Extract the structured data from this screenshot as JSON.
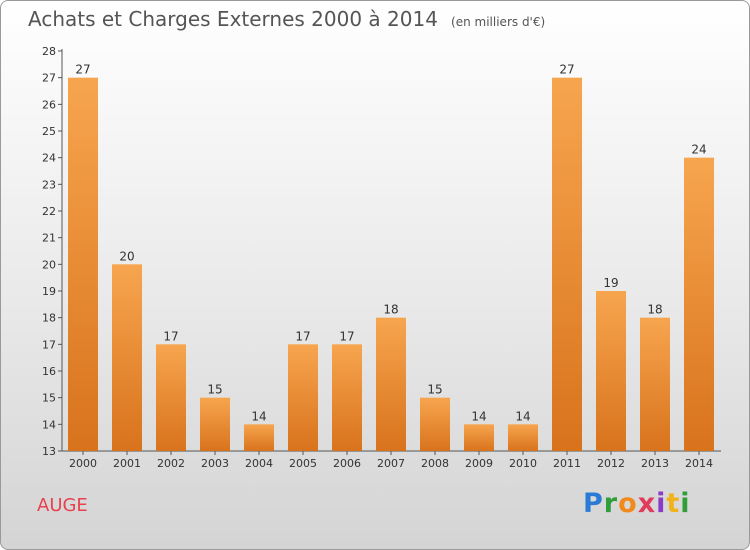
{
  "header": {
    "title": "Achats et Charges Externes 2000 à 2014",
    "unit": "(en milliers d'€)"
  },
  "footer": {
    "commune": "AUGE",
    "logo": "Proxiti"
  },
  "colors": {
    "bar_light": "#f7a54f",
    "bar_dark": "#d8731c",
    "axis": "#555555",
    "commune": "#e8414f"
  },
  "chart_data": {
    "type": "bar",
    "title": "Achats et Charges Externes 2000 à 2014",
    "subtitle": "(en milliers d'€)",
    "categories": [
      "2000",
      "2001",
      "2002",
      "2003",
      "2004",
      "2005",
      "2006",
      "2007",
      "2008",
      "2009",
      "2010",
      "2011",
      "2012",
      "2013",
      "2014"
    ],
    "values": [
      27,
      20,
      17,
      15,
      14,
      17,
      17,
      18,
      15,
      14,
      14,
      27,
      19,
      18,
      24
    ],
    "ylim": [
      13,
      28
    ],
    "yticks": [
      13,
      14,
      15,
      16,
      17,
      18,
      19,
      20,
      21,
      22,
      23,
      24,
      25,
      26,
      27,
      28
    ],
    "grid": false,
    "legend": "none"
  }
}
